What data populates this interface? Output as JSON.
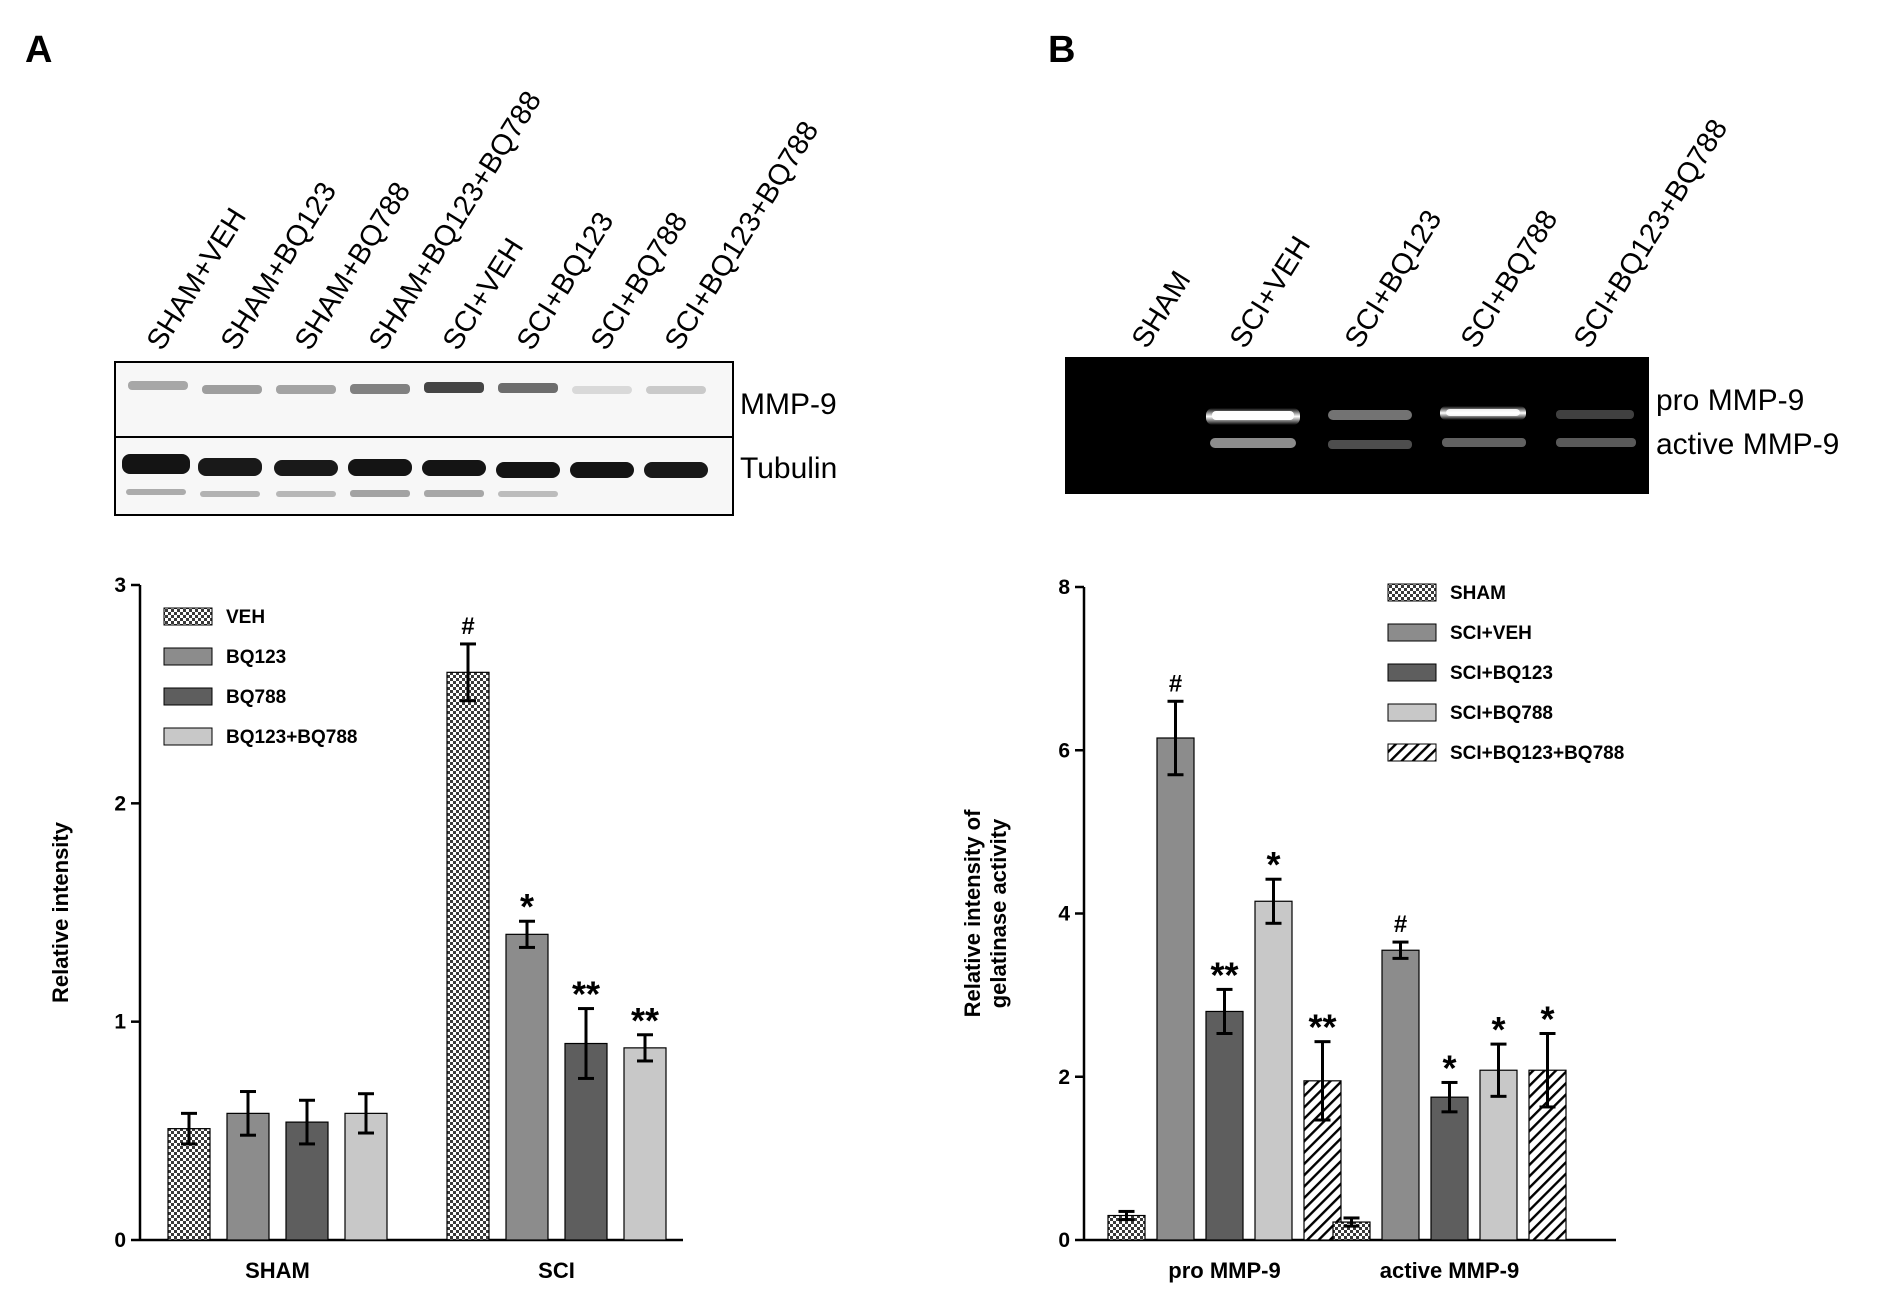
{
  "panels": [
    {
      "letter": "A",
      "blot": {
        "lanes": [
          "SHAM+VEH",
          "SHAM+BQ123",
          "SHAM+BQ788",
          "SHAM+BQ123+BQ788",
          "SCI+VEH",
          "SCI+BQ123",
          "SCI+BQ788",
          "SCI+BQ123+BQ788"
        ],
        "bands": [
          "MMP-9",
          "Tubulin"
        ]
      }
    },
    {
      "letter": "B",
      "gel": {
        "lanes": [
          "SHAM",
          "SCI+VEH",
          "SCI+BQ123",
          "SCI+BQ788",
          "SCI+BQ123+BQ788"
        ],
        "bands": [
          "pro MMP-9",
          "active MMP-9"
        ]
      }
    }
  ],
  "chart_data": [
    {
      "type": "bar",
      "title": "",
      "xlabel": "",
      "ylabel": "Relative intensity",
      "ylim": [
        0,
        3
      ],
      "yticks": [
        "0",
        "1",
        "2",
        "3"
      ],
      "categories": [
        "SHAM",
        "SCI"
      ],
      "legend_position": "top-left",
      "series": [
        {
          "name": "VEH",
          "values": [
            0.51,
            2.6
          ],
          "errors": [
            0.07,
            0.13
          ],
          "labels": [
            "",
            "#"
          ],
          "color": "#d9d9d9",
          "pattern": "checker"
        },
        {
          "name": "BQ123",
          "values": [
            0.58,
            1.4
          ],
          "errors": [
            0.1,
            0.06
          ],
          "labels": [
            "",
            "*"
          ],
          "color": "#8c8c8c",
          "pattern": "solid"
        },
        {
          "name": "BQ788",
          "values": [
            0.54,
            0.9
          ],
          "errors": [
            0.1,
            0.16
          ],
          "labels": [
            "",
            "**"
          ],
          "color": "#5e5e5e",
          "pattern": "solid"
        },
        {
          "name": "BQ123+BQ788",
          "values": [
            0.58,
            0.88
          ],
          "errors": [
            0.09,
            0.06
          ],
          "labels": [
            "",
            "**"
          ],
          "color": "#c8c8c8",
          "pattern": "solid"
        }
      ]
    },
    {
      "type": "bar",
      "title": "",
      "xlabel": "",
      "ylabel": "Relative intensity of gelatinase activity",
      "ylabel_lines": [
        "Relative intensity of",
        "gelatinase activity"
      ],
      "ylim": [
        0,
        8
      ],
      "yticks": [
        "0",
        "2",
        "4",
        "6",
        "8"
      ],
      "categories": [
        "pro MMP-9",
        "active MMP-9"
      ],
      "legend_position": "top-right",
      "series": [
        {
          "name": "SHAM",
          "values": [
            0.3,
            0.22
          ],
          "errors": [
            0.05,
            0.05
          ],
          "labels": [
            "",
            ""
          ],
          "color": "#d9d9d9",
          "pattern": "checker"
        },
        {
          "name": "SCI+VEH",
          "values": [
            6.15,
            3.55
          ],
          "errors": [
            0.45,
            0.1
          ],
          "labels": [
            "#",
            "#"
          ],
          "color": "#8c8c8c",
          "pattern": "solid"
        },
        {
          "name": "SCI+BQ123",
          "values": [
            2.8,
            1.75
          ],
          "errors": [
            0.27,
            0.18
          ],
          "labels": [
            "**",
            "*"
          ],
          "color": "#5e5e5e",
          "pattern": "solid"
        },
        {
          "name": "SCI+BQ788",
          "values": [
            4.15,
            2.08
          ],
          "errors": [
            0.27,
            0.32
          ],
          "labels": [
            "*",
            "*"
          ],
          "color": "#c8c8c8",
          "pattern": "solid"
        },
        {
          "name": "SCI+BQ123+BQ788",
          "values": [
            1.95,
            2.08
          ],
          "errors": [
            0.48,
            0.45
          ],
          "labels": [
            "**",
            "*"
          ],
          "color": "#ffffff",
          "pattern": "hatch"
        }
      ]
    }
  ]
}
